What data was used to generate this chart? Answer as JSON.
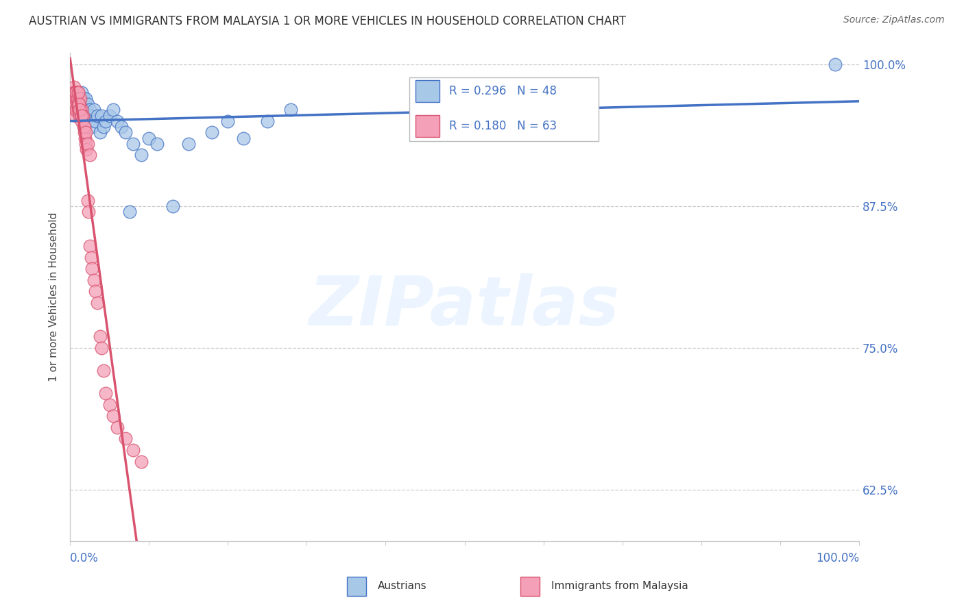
{
  "title": "AUSTRIAN VS IMMIGRANTS FROM MALAYSIA 1 OR MORE VEHICLES IN HOUSEHOLD CORRELATION CHART",
  "source": "Source: ZipAtlas.com",
  "ylabel": "1 or more Vehicles in Household",
  "ytick_labels": [
    "100.0%",
    "87.5%",
    "75.0%",
    "62.5%"
  ],
  "ytick_values": [
    1.0,
    0.875,
    0.75,
    0.625
  ],
  "legend_label1": "Austrians",
  "legend_label2": "Immigrants from Malaysia",
  "R1": 0.296,
  "N1": 48,
  "R2": 0.18,
  "N2": 63,
  "color_blue": "#a8c8e8",
  "color_pink": "#f4a0b8",
  "color_blue_dark": "#4472c4",
  "color_pink_dark": "#d9536f",
  "color_text": "#4472c4",
  "color_grid": "#cccccc",
  "austrians_x": [
    0.005,
    0.007,
    0.008,
    0.009,
    0.01,
    0.01,
    0.011,
    0.012,
    0.013,
    0.014,
    0.015,
    0.015,
    0.016,
    0.017,
    0.018,
    0.019,
    0.02,
    0.02,
    0.022,
    0.023,
    0.025,
    0.026,
    0.028,
    0.03,
    0.032,
    0.035,
    0.038,
    0.04,
    0.042,
    0.045,
    0.05,
    0.055,
    0.06,
    0.065,
    0.07,
    0.075,
    0.08,
    0.09,
    0.1,
    0.11,
    0.13,
    0.15,
    0.18,
    0.2,
    0.22,
    0.25,
    0.28,
    0.97
  ],
  "austrians_y": [
    0.96,
    0.97,
    0.965,
    0.975,
    0.96,
    0.97,
    0.965,
    0.955,
    0.96,
    0.97,
    0.96,
    0.975,
    0.965,
    0.97,
    0.96,
    0.955,
    0.97,
    0.96,
    0.965,
    0.95,
    0.96,
    0.955,
    0.945,
    0.96,
    0.95,
    0.955,
    0.94,
    0.955,
    0.945,
    0.95,
    0.955,
    0.96,
    0.95,
    0.945,
    0.94,
    0.87,
    0.93,
    0.92,
    0.935,
    0.93,
    0.875,
    0.93,
    0.94,
    0.95,
    0.935,
    0.95,
    0.96,
    1.0
  ],
  "malaysia_x": [
    0.002,
    0.003,
    0.003,
    0.004,
    0.004,
    0.005,
    0.005,
    0.005,
    0.006,
    0.006,
    0.006,
    0.007,
    0.007,
    0.007,
    0.008,
    0.008,
    0.008,
    0.009,
    0.009,
    0.01,
    0.01,
    0.01,
    0.011,
    0.011,
    0.012,
    0.012,
    0.013,
    0.013,
    0.014,
    0.015,
    0.015,
    0.016,
    0.017,
    0.018,
    0.019,
    0.02,
    0.021,
    0.022,
    0.023,
    0.025,
    0.027,
    0.028,
    0.03,
    0.032,
    0.035,
    0.038,
    0.04,
    0.042,
    0.045,
    0.05,
    0.055,
    0.06,
    0.07,
    0.08,
    0.09,
    0.01,
    0.011,
    0.012,
    0.015,
    0.018,
    0.02,
    0.022,
    0.025
  ],
  "malaysia_y": [
    0.97,
    0.975,
    0.965,
    0.97,
    0.96,
    0.98,
    0.975,
    0.965,
    0.975,
    0.97,
    0.96,
    0.975,
    0.965,
    0.955,
    0.97,
    0.96,
    0.975,
    0.965,
    0.97,
    0.96,
    0.975,
    0.965,
    0.96,
    0.97,
    0.965,
    0.955,
    0.96,
    0.97,
    0.955,
    0.96,
    0.95,
    0.955,
    0.945,
    0.94,
    0.935,
    0.93,
    0.925,
    0.88,
    0.87,
    0.84,
    0.83,
    0.82,
    0.81,
    0.8,
    0.79,
    0.76,
    0.75,
    0.73,
    0.71,
    0.7,
    0.69,
    0.68,
    0.67,
    0.66,
    0.65,
    0.975,
    0.965,
    0.96,
    0.955,
    0.945,
    0.94,
    0.93,
    0.92
  ],
  "xmin": 0.0,
  "xmax": 1.0,
  "ymin": 0.58,
  "ymax": 1.01,
  "background_color": "#ffffff"
}
